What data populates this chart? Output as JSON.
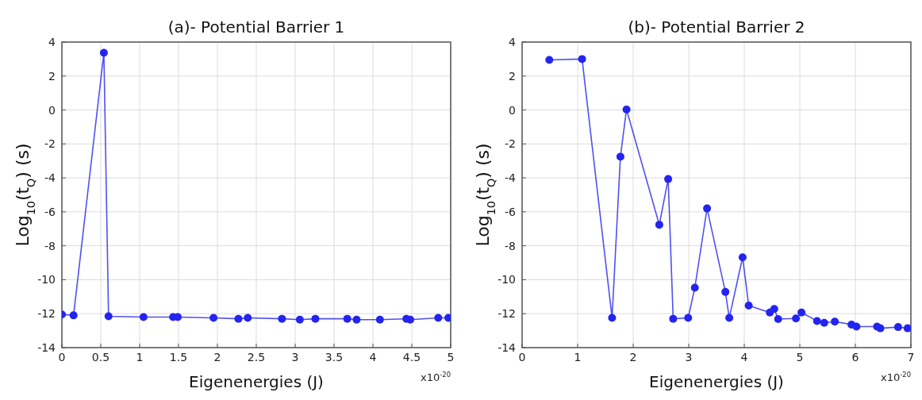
{
  "chart_data": [
    {
      "type": "line",
      "title": "(a)- Potential Barrier 1",
      "xlabel": "Eigenenergies (J)",
      "ylabel": "Log$_{10}$(t$_{Q}$) (s)",
      "annotations": [
        "x10$^{-20}$"
      ],
      "xlim": [
        0,
        5
      ],
      "xticks": [
        0,
        0.5,
        1,
        1.5,
        2,
        2.5,
        3,
        3.5,
        4,
        4.5,
        5
      ],
      "ylim": [
        -14,
        4
      ],
      "yticks": [
        -14,
        -12,
        -10,
        -8,
        -6,
        -4,
        -2,
        0,
        2,
        4
      ],
      "grid": true,
      "marker": "circle",
      "line_style": "solid",
      "series": [
        {
          "color": "#2424f0",
          "x": [
            0,
            0.15,
            0.54,
            0.6,
            1.05,
            1.43,
            1.49,
            1.95,
            2.27,
            2.39,
            2.83,
            3.06,
            3.26,
            3.67,
            3.79,
            4.09,
            4.43,
            4.48,
            4.84,
            4.97
          ],
          "values": [
            -12.05,
            -12.1,
            3.37,
            -12.15,
            -12.2,
            -12.2,
            -12.2,
            -12.25,
            -12.3,
            -12.25,
            -12.3,
            -12.35,
            -12.3,
            -12.3,
            -12.35,
            -12.35,
            -12.3,
            -12.35,
            -12.25,
            -12.25
          ]
        }
      ]
    },
    {
      "type": "line",
      "title": "(b)- Potential Barrier 2",
      "xlabel": "Eigenenergies (J)",
      "ylabel": "Log$_{10}$(t$_{Q}$) (s)",
      "annotations": [
        "x10$^{-20}$"
      ],
      "xlim": [
        0,
        7
      ],
      "xticks": [
        0,
        1,
        2,
        3,
        4,
        5,
        6,
        7
      ],
      "ylim": [
        -14,
        4
      ],
      "yticks": [
        -14,
        -12,
        -10,
        -8,
        -6,
        -4,
        -2,
        0,
        2,
        4
      ],
      "grid": true,
      "marker": "circle",
      "line_style": "solid",
      "series": [
        {
          "color": "#2424f0",
          "x": [
            0.49,
            1.08,
            1.62,
            1.77,
            1.88,
            2.47,
            2.63,
            2.72,
            2.99,
            3.11,
            3.33,
            3.66,
            3.73,
            3.97,
            4.08,
            4.46,
            4.54,
            4.61,
            4.93,
            5.03,
            5.31,
            5.44,
            5.63,
            5.93,
            6.02,
            6.39,
            6.45,
            6.77,
            6.94
          ],
          "values": [
            2.95,
            3.0,
            -12.25,
            -2.75,
            0.03,
            -6.76,
            -4.07,
            -12.3,
            -12.25,
            -10.47,
            -5.8,
            -10.72,
            -12.25,
            -8.68,
            -11.52,
            -11.93,
            -11.72,
            -12.32,
            -12.28,
            -11.93,
            -12.43,
            -12.54,
            -12.47,
            -12.64,
            -12.76,
            -12.76,
            -12.86,
            -12.79,
            -12.86
          ]
        }
      ]
    }
  ]
}
